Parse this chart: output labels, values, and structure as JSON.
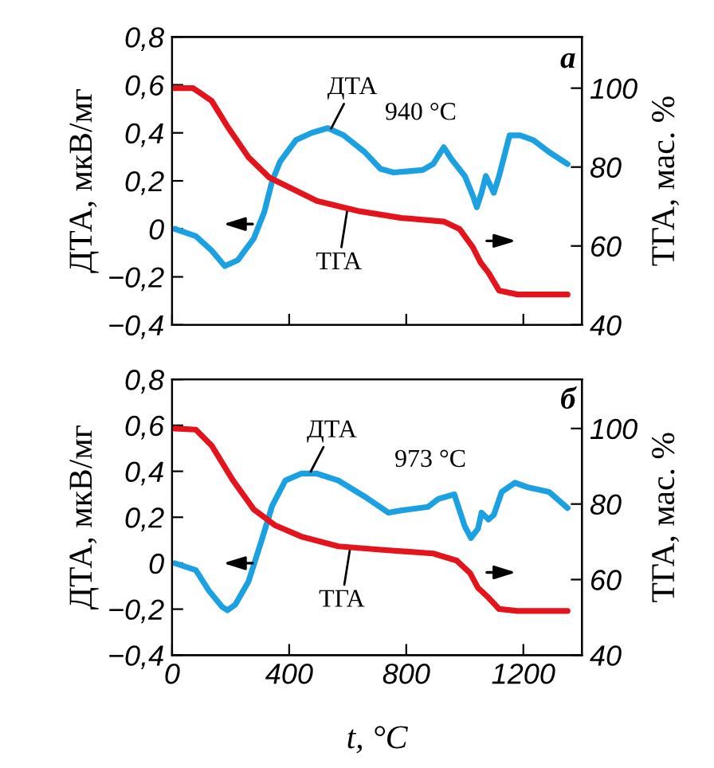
{
  "chart_data": [
    {
      "type": "line",
      "ylabel": "ДТА, мкВ/мг",
      "y2label": "ТГА, мас. %",
      "xlim": [
        0,
        1400
      ],
      "xticks": [
        {
          "value": 0,
          "label": null
        },
        {
          "value": 400,
          "label": null
        },
        {
          "value": 800,
          "label": null
        },
        {
          "value": 1200,
          "label": null
        }
      ],
      "ylim": [
        -0.4,
        0.8
      ],
      "yticks": [
        {
          "value": -0.4,
          "label": "−0,4"
        },
        {
          "value": -0.2,
          "label": "−0,2"
        },
        {
          "value": 0,
          "label": "0"
        },
        {
          "value": 0.2,
          "label": "0,2"
        },
        {
          "value": 0.4,
          "label": "0,4"
        },
        {
          "value": 0.6,
          "label": "0,6"
        },
        {
          "value": 0.8,
          "label": "0,8"
        }
      ],
      "y2lim": [
        40,
        113
      ],
      "y2ticks": [
        40,
        60,
        80,
        100
      ],
      "tick_labels": "y",
      "grid": false,
      "annotations": [
        {
          "text": "ДТА",
          "x": 540,
          "y": 0.41
        },
        {
          "text": "940 °C",
          "x": 940,
          "y": 0.34
        },
        {
          "text": "ТГА",
          "x": 600,
          "y": 0.09
        },
        "a"
      ],
      "series": [
        {
          "color": "#1ba1e2",
          "x": [
            9,
            81,
            135,
            180,
            225,
            279,
            315,
            342,
            369,
            423,
            477,
            532,
            586,
            658,
            712,
            757,
            856,
            892,
            928,
            955,
            1000,
            1027,
            1041,
            1057,
            1072,
            1099,
            1117,
            1153,
            1189,
            1234,
            1288,
            1351
          ],
          "values": [
            0.0,
            -0.03,
            -0.09,
            -0.155,
            -0.13,
            -0.04,
            0.07,
            0.2,
            0.28,
            0.37,
            0.4,
            0.42,
            0.39,
            0.32,
            0.25,
            0.235,
            0.245,
            0.27,
            0.34,
            0.29,
            0.22,
            0.14,
            0.09,
            0.15,
            0.22,
            0.15,
            0.22,
            0.39,
            0.39,
            0.37,
            0.32,
            0.27
          ]
        },
        {
          "color": "#e3141b",
          "axis": "y2",
          "x": [
            9,
            72,
            135,
            189,
            261,
            333,
            405,
            495,
            640,
            784,
            928,
            982,
            1027,
            1054,
            1081,
            1117,
            1180,
            1351
          ],
          "values": [
            100,
            100,
            96.8,
            90.3,
            82.5,
            77.3,
            74.7,
            71.4,
            68.8,
            67.1,
            66.2,
            64.3,
            59.7,
            55.8,
            53.2,
            48.7,
            47.7,
            47.7
          ]
        }
      ]
    },
    {
      "type": "line",
      "ylabel": "ДТА, мкВ/мг",
      "y2label": "ТГА, мас. %",
      "xlabel": "t, °C",
      "xlim": [
        0,
        1400
      ],
      "xticks": [
        {
          "value": 0,
          "label": "0"
        },
        {
          "value": 400,
          "label": "400"
        },
        {
          "value": 800,
          "label": "800"
        },
        {
          "value": 1200,
          "label": "1200"
        }
      ],
      "ylim": [
        -0.4,
        0.8
      ],
      "yticks": [
        {
          "value": -0.4,
          "label": "−0,4"
        },
        {
          "value": -0.2,
          "label": "−0,2"
        },
        {
          "value": 0,
          "label": "0"
        },
        {
          "value": 0.2,
          "label": "0,2"
        },
        {
          "value": 0.4,
          "label": "0,4"
        },
        {
          "value": 0.6,
          "label": "0,6"
        },
        {
          "value": 0.8,
          "label": "0,8"
        }
      ],
      "y2lim": [
        40,
        113
      ],
      "y2ticks": [
        40,
        60,
        80,
        100
      ],
      "grid": false,
      "annotations": [
        {
          "text": "ДТА",
          "x": 470,
          "y": 0.39
        },
        {
          "text": "973 °C",
          "x": 973,
          "y": 0.3
        },
        {
          "text": "ТГА",
          "x": 610,
          "y": 0.08
        },
        "б"
      ],
      "series": [
        {
          "color": "#1ba1e2",
          "x": [
            9,
            81,
            126,
            171,
            189,
            216,
            261,
            306,
            342,
            387,
            441,
            495,
            568,
            658,
            739,
            784,
            874,
            910,
            964,
            982,
            1000,
            1021,
            1045,
            1057,
            1081,
            1099,
            1126,
            1171,
            1216,
            1288,
            1351
          ],
          "values": [
            0.0,
            -0.03,
            -0.12,
            -0.19,
            -0.205,
            -0.18,
            -0.08,
            0.1,
            0.25,
            0.36,
            0.39,
            0.39,
            0.36,
            0.29,
            0.22,
            0.23,
            0.245,
            0.28,
            0.3,
            0.23,
            0.16,
            0.11,
            0.15,
            0.22,
            0.19,
            0.21,
            0.31,
            0.35,
            0.33,
            0.31,
            0.24
          ]
        },
        {
          "color": "#e3141b",
          "axis": "y2",
          "x": [
            9,
            81,
            135,
            207,
            279,
            351,
            441,
            568,
            712,
            892,
            973,
            1018,
            1045,
            1081,
            1117,
            1180,
            1351
          ],
          "values": [
            100,
            99.7,
            95.5,
            86.4,
            78.6,
            74.4,
            71.4,
            68.8,
            67.9,
            66.9,
            65.0,
            61.7,
            57.8,
            55.2,
            52.2,
            51.7,
            51.7
          ]
        }
      ]
    }
  ]
}
